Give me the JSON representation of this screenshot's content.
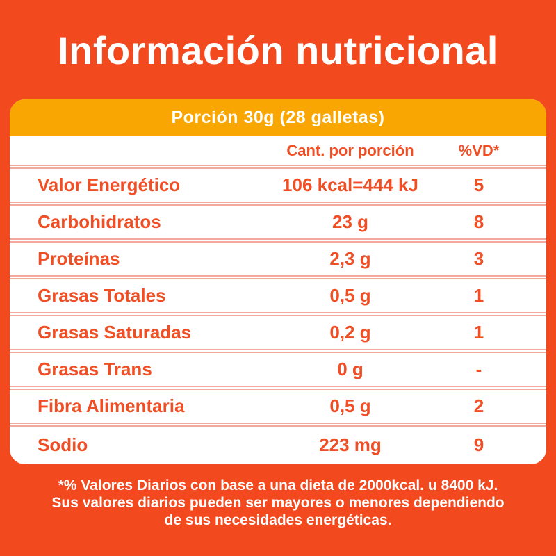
{
  "title": "Información nutricional",
  "panel": {
    "serving_header": "Porción 30g (28 galletas)",
    "columns": {
      "amount": "Cant. por porción",
      "daily_value": "%VD*"
    },
    "rows": [
      {
        "label": "Valor Energético",
        "amount": "106 kcal=444 kJ",
        "dv": "5"
      },
      {
        "label": "Carbohidratos",
        "amount": "23 g",
        "dv": "8"
      },
      {
        "label": "Proteínas",
        "amount": "2,3 g",
        "dv": "3"
      },
      {
        "label": "Grasas Totales",
        "amount": "0,5 g",
        "dv": "1"
      },
      {
        "label": "Grasas Saturadas",
        "amount": "0,2 g",
        "dv": "1"
      },
      {
        "label": "Grasas Trans",
        "amount": "0 g",
        "dv": "-"
      },
      {
        "label": "Fibra Alimentaria",
        "amount": "0,5 g",
        "dv": "2"
      },
      {
        "label": "Sodio",
        "amount": "223 mg",
        "dv": "9"
      }
    ]
  },
  "footnote": {
    "line1": "*% Valores Diarios con base a una dieta de 2000kcal. u 8400 kJ.",
    "line2": "Sus valores diarios pueden ser mayores o menores dependiendo",
    "line3": "de sus necesidades energéticas."
  },
  "colors": {
    "background": "#F2491E",
    "header_band": "#F9A602",
    "table_text": "#F04F26",
    "divider": "#F3A99C",
    "panel": "#FFFFFF",
    "title_text": "#FFFFFF"
  }
}
